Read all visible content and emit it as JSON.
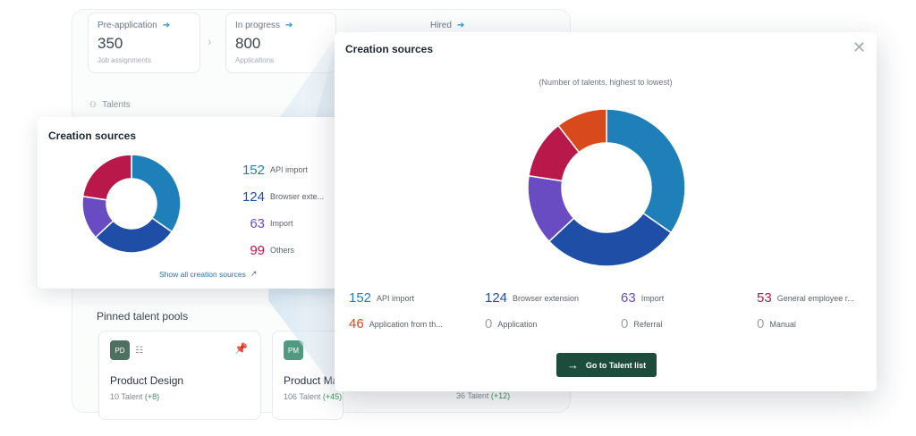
{
  "background": {
    "stats": [
      {
        "title": "Pre-application",
        "value": "350",
        "sub": "Job assignments"
      },
      {
        "title": "In progress",
        "value": "800",
        "sub": "Applications"
      },
      {
        "title": "Hired",
        "value": "",
        "sub": ""
      }
    ],
    "talents_label": "Talents",
    "pinned_title": "Pinned talent pools",
    "pools": [
      {
        "badge": "PD",
        "name": "Product Design",
        "count": "10 Talent",
        "plus": "(+8)",
        "badge_color": "#4d7060"
      },
      {
        "badge": "PM",
        "name": "Product Ma",
        "count": "106 Talent",
        "plus": "(+45)",
        "badge_color": "#4f9a80"
      }
    ],
    "extra_count": "36 Talent",
    "extra_plus": "(+12)"
  },
  "small_card": {
    "title": "Creation sources",
    "legend": [
      {
        "value": "152",
        "label": "API import",
        "color": "#1f7fb8"
      },
      {
        "value": "124",
        "label": "Browser exte...",
        "color": "#1f4ea6"
      },
      {
        "value": "63",
        "label": "Import",
        "color": "#6a4cc2"
      },
      {
        "value": "99",
        "label": "Others",
        "color": "#b8184a"
      }
    ],
    "link": "Show all creation sources"
  },
  "modal": {
    "title": "Creation sources",
    "subtitle": "(Number of talents, highest to lowest)",
    "legend": [
      {
        "value": "152",
        "label": "API import",
        "color": "#1f7fb8"
      },
      {
        "value": "124",
        "label": "Browser extension",
        "color": "#1f4ea6"
      },
      {
        "value": "63",
        "label": "Import",
        "color": "#6a4cc2"
      },
      {
        "value": "53",
        "label": "General employee r...",
        "color": "#b8184a"
      },
      {
        "value": "46",
        "label": "Application from th...",
        "color": "#d84a1b"
      },
      {
        "value": "0",
        "label": "Application",
        "color": "#9aa3ad"
      },
      {
        "value": "0",
        "label": "Referral",
        "color": "#9aa3ad"
      },
      {
        "value": "0",
        "label": "Manual",
        "color": "#9aa3ad"
      }
    ],
    "button": "Go to Talent list"
  },
  "chart_data": [
    {
      "type": "pie",
      "categories": [
        "API import",
        "Browser exte...",
        "Import",
        "Others"
      ],
      "values": [
        152,
        124,
        63,
        99
      ],
      "colors": [
        "#1f7fb8",
        "#1f4ea6",
        "#6a4cc2",
        "#b8184a"
      ]
    },
    {
      "type": "pie",
      "title": "(Number of talents, highest to lowest)",
      "categories": [
        "API import",
        "Browser extension",
        "Import",
        "General employee r...",
        "Application from th...",
        "Application",
        "Referral",
        "Manual"
      ],
      "values": [
        152,
        124,
        63,
        53,
        46,
        0,
        0,
        0
      ],
      "colors": [
        "#1f7fb8",
        "#1f4ea6",
        "#6a4cc2",
        "#b8184a",
        "#d84a1b",
        "#9aa3ad",
        "#9aa3ad",
        "#9aa3ad"
      ]
    }
  ]
}
